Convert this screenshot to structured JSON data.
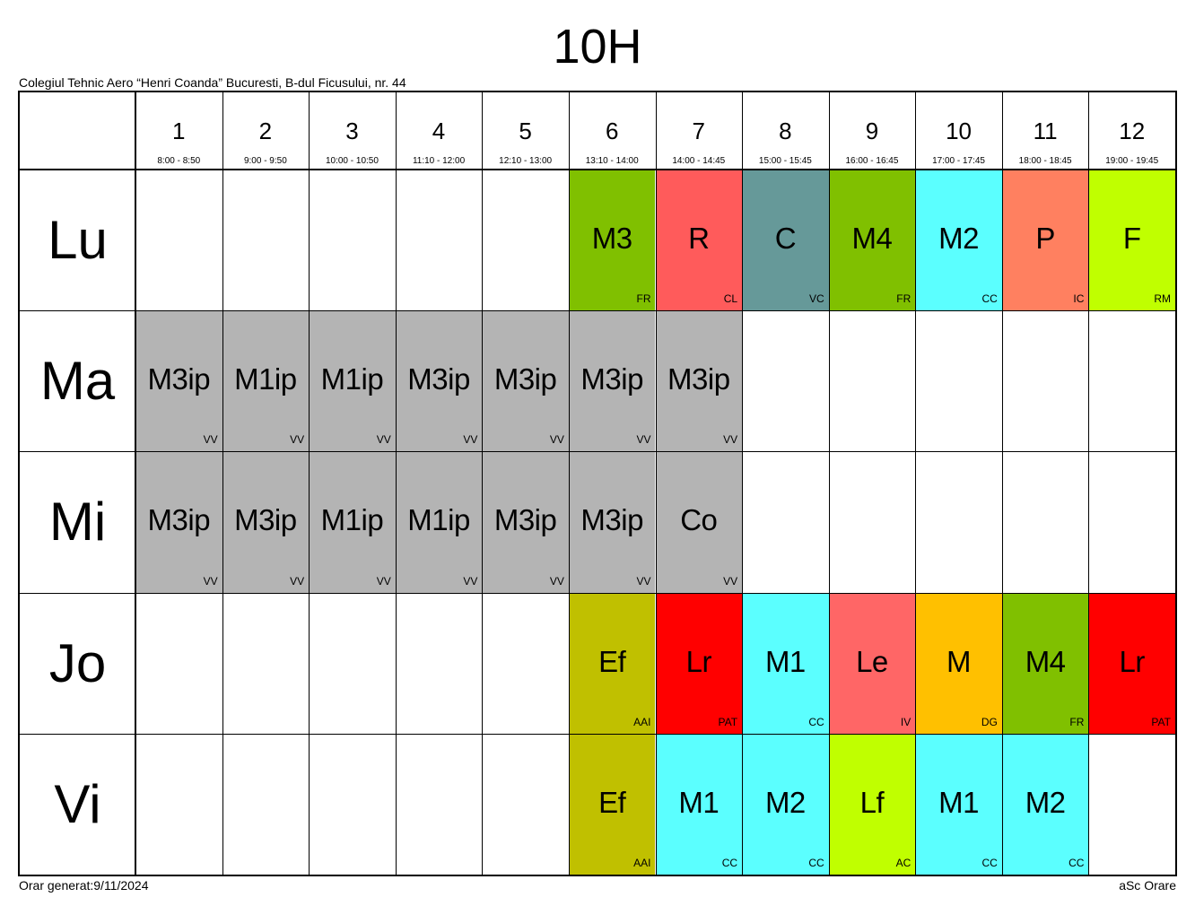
{
  "title": "10H",
  "school": "Colegiul Tehnic Aero “Henri Coanda” Bucuresti, B-dul Ficusului, nr. 44",
  "footer": {
    "generated": "Orar generat:9/11/2024",
    "software": "aSc Orare"
  },
  "periods": [
    {
      "num": "1",
      "time": "8:00 - 8:50"
    },
    {
      "num": "2",
      "time": "9:00 - 9:50"
    },
    {
      "num": "3",
      "time": "10:00 - 10:50"
    },
    {
      "num": "4",
      "time": "11:10 - 12:00"
    },
    {
      "num": "5",
      "time": "12:10 - 13:00"
    },
    {
      "num": "6",
      "time": "13:10 - 14:00"
    },
    {
      "num": "7",
      "time": "14:00 - 14:45"
    },
    {
      "num": "8",
      "time": "15:00 - 15:45"
    },
    {
      "num": "9",
      "time": "16:00 - 16:45"
    },
    {
      "num": "10",
      "time": "17:00 - 17:45"
    },
    {
      "num": "11",
      "time": "18:00 - 18:45"
    },
    {
      "num": "12",
      "time": "19:00 - 19:45"
    }
  ],
  "days": [
    {
      "name": "Lu",
      "lessons": [
        null,
        null,
        null,
        null,
        null,
        {
          "subject": "M3",
          "teacher": "FR",
          "color": "#80c000"
        },
        {
          "subject": "R",
          "teacher": "CL",
          "color": "#ff5b5b"
        },
        {
          "subject": "C",
          "teacher": "VC",
          "color": "#669999"
        },
        {
          "subject": "M4",
          "teacher": "FR",
          "color": "#80c000"
        },
        {
          "subject": "M2",
          "teacher": "CC",
          "color": "#5bffff"
        },
        {
          "subject": "P",
          "teacher": "IC",
          "color": "#ff8060"
        },
        {
          "subject": "F",
          "teacher": "RM",
          "color": "#c0ff00"
        }
      ]
    },
    {
      "name": "Ma",
      "lessons": [
        {
          "subject": "M3ip",
          "teacher": "VV",
          "color": "#b4b4b4"
        },
        {
          "subject": "M1ip",
          "teacher": "VV",
          "color": "#b4b4b4"
        },
        {
          "subject": "M1ip",
          "teacher": "VV",
          "color": "#b4b4b4"
        },
        {
          "subject": "M3ip",
          "teacher": "VV",
          "color": "#b4b4b4"
        },
        {
          "subject": "M3ip",
          "teacher": "VV",
          "color": "#b4b4b4"
        },
        {
          "subject": "M3ip",
          "teacher": "VV",
          "color": "#b4b4b4"
        },
        {
          "subject": "M3ip",
          "teacher": "VV",
          "color": "#b4b4b4"
        },
        null,
        null,
        null,
        null,
        null
      ]
    },
    {
      "name": "Mi",
      "lessons": [
        {
          "subject": "M3ip",
          "teacher": "VV",
          "color": "#b4b4b4"
        },
        {
          "subject": "M3ip",
          "teacher": "VV",
          "color": "#b4b4b4"
        },
        {
          "subject": "M1ip",
          "teacher": "VV",
          "color": "#b4b4b4"
        },
        {
          "subject": "M1ip",
          "teacher": "VV",
          "color": "#b4b4b4"
        },
        {
          "subject": "M3ip",
          "teacher": "VV",
          "color": "#b4b4b4"
        },
        {
          "subject": "M3ip",
          "teacher": "VV",
          "color": "#b4b4b4"
        },
        {
          "subject": "Co",
          "teacher": "VV",
          "color": "#b4b4b4"
        },
        null,
        null,
        null,
        null,
        null
      ]
    },
    {
      "name": "Jo",
      "lessons": [
        null,
        null,
        null,
        null,
        null,
        {
          "subject": "Ef",
          "teacher": "AAI",
          "color": "#c0c000"
        },
        {
          "subject": "Lr",
          "teacher": "PAT",
          "color": "#ff0000"
        },
        {
          "subject": "M1",
          "teacher": "CC",
          "color": "#5bffff"
        },
        {
          "subject": "Le",
          "teacher": "IV",
          "color": "#ff6666"
        },
        {
          "subject": "M",
          "teacher": "DG",
          "color": "#ffc000"
        },
        {
          "subject": "M4",
          "teacher": "FR",
          "color": "#80c000"
        },
        {
          "subject": "Lr",
          "teacher": "PAT",
          "color": "#ff0000"
        }
      ]
    },
    {
      "name": "Vi",
      "lessons": [
        null,
        null,
        null,
        null,
        null,
        {
          "subject": "Ef",
          "teacher": "AAI",
          "color": "#c0c000"
        },
        {
          "subject": "M1",
          "teacher": "CC",
          "color": "#5bffff"
        },
        {
          "subject": "M2",
          "teacher": "CC",
          "color": "#5bffff"
        },
        {
          "subject": "Lf",
          "teacher": "AC",
          "color": "#c0ff00"
        },
        {
          "subject": "M1",
          "teacher": "CC",
          "color": "#5bffff"
        },
        {
          "subject": "M2",
          "teacher": "CC",
          "color": "#5bffff"
        },
        null
      ]
    }
  ]
}
